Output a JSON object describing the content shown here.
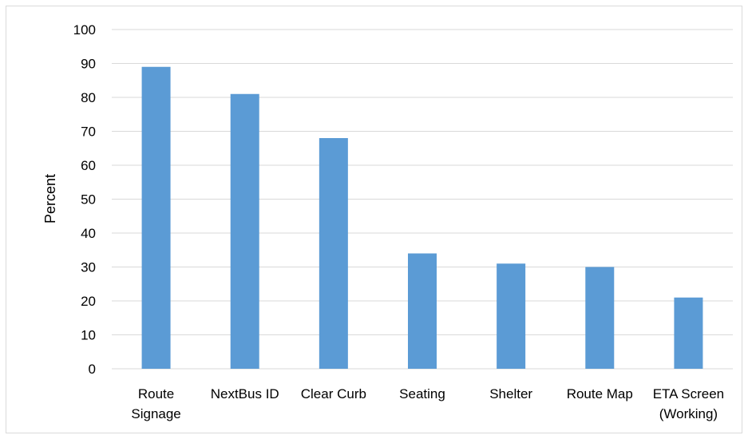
{
  "chart_data": {
    "type": "bar",
    "title": "",
    "xlabel": "",
    "ylabel": "Percent",
    "ylim": [
      0,
      100
    ],
    "yticks": [
      0,
      10,
      20,
      30,
      40,
      50,
      60,
      70,
      80,
      90,
      100
    ],
    "grid": true,
    "legend": "none",
    "bar_color": "#5B9BD5",
    "categories": [
      [
        "Route",
        "Signage"
      ],
      [
        "NextBus ID"
      ],
      [
        "Clear Curb"
      ],
      [
        "Seating"
      ],
      [
        "Shelter"
      ],
      [
        "Route Map"
      ],
      [
        "ETA Screen",
        "(Working)"
      ]
    ],
    "values": [
      89,
      81,
      68,
      34,
      31,
      30,
      21
    ]
  }
}
